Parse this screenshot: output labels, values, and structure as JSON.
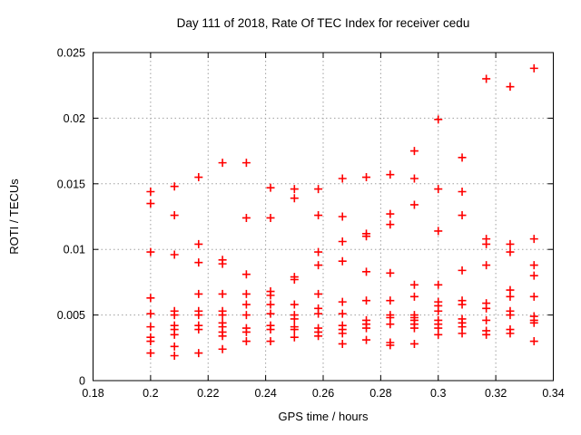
{
  "page": {
    "background": "#ffffff"
  },
  "chart_data": {
    "type": "scatter",
    "title": "Day 111 of 2018, Rate Of TEC Index for receiver cedu",
    "xlabel": "GPS time / hours",
    "ylabel": "ROTI / TECUs",
    "xlim": [
      0.18,
      0.34
    ],
    "ylim": [
      0,
      0.025
    ],
    "xtick_values": [
      0.18,
      0.2,
      0.22,
      0.24,
      0.26,
      0.28,
      0.3,
      0.32,
      0.34
    ],
    "xtick_labels": [
      "0.18",
      "0.2",
      "0.22",
      "0.24",
      "0.26",
      "0.28",
      "0.3",
      "0.32",
      "0.34"
    ],
    "ytick_values": [
      0,
      0.005,
      0.01,
      0.015,
      0.02,
      0.025
    ],
    "ytick_labels": [
      "0",
      "0.005",
      "0.01",
      "0.015",
      "0.02",
      "0.025"
    ],
    "grid": true,
    "legend": false,
    "marker": "plus",
    "marker_color": "#ff0000",
    "grid_color": "#9f9f9f",
    "series": [
      {
        "name": "ROTI",
        "points": [
          [
            0.2,
            0.0144
          ],
          [
            0.2,
            0.0135
          ],
          [
            0.2,
            0.0098
          ],
          [
            0.2,
            0.0063
          ],
          [
            0.2,
            0.0051
          ],
          [
            0.2,
            0.0041
          ],
          [
            0.2,
            0.0033
          ],
          [
            0.2,
            0.003
          ],
          [
            0.2,
            0.0021
          ],
          [
            0.2083,
            0.0148
          ],
          [
            0.2083,
            0.0126
          ],
          [
            0.2083,
            0.0096
          ],
          [
            0.2083,
            0.0053
          ],
          [
            0.2083,
            0.005
          ],
          [
            0.2083,
            0.0042
          ],
          [
            0.2083,
            0.0039
          ],
          [
            0.2083,
            0.0035
          ],
          [
            0.2083,
            0.0026
          ],
          [
            0.2083,
            0.0019
          ],
          [
            0.2167,
            0.0155
          ],
          [
            0.2167,
            0.0104
          ],
          [
            0.2167,
            0.009
          ],
          [
            0.2167,
            0.0066
          ],
          [
            0.2167,
            0.0053
          ],
          [
            0.2167,
            0.005
          ],
          [
            0.2167,
            0.0042
          ],
          [
            0.2167,
            0.0039
          ],
          [
            0.2167,
            0.0021
          ],
          [
            0.225,
            0.0166
          ],
          [
            0.225,
            0.0092
          ],
          [
            0.225,
            0.0089
          ],
          [
            0.225,
            0.0066
          ],
          [
            0.225,
            0.0053
          ],
          [
            0.225,
            0.005
          ],
          [
            0.225,
            0.0044
          ],
          [
            0.225,
            0.0041
          ],
          [
            0.225,
            0.0037
          ],
          [
            0.225,
            0.0034
          ],
          [
            0.225,
            0.0024
          ],
          [
            0.2333,
            0.0166
          ],
          [
            0.2333,
            0.0124
          ],
          [
            0.2333,
            0.0081
          ],
          [
            0.2333,
            0.0066
          ],
          [
            0.2333,
            0.0058
          ],
          [
            0.2333,
            0.005
          ],
          [
            0.2333,
            0.004
          ],
          [
            0.2333,
            0.0037
          ],
          [
            0.2333,
            0.003
          ],
          [
            0.2417,
            0.0147
          ],
          [
            0.2417,
            0.0124
          ],
          [
            0.2417,
            0.0068
          ],
          [
            0.2417,
            0.0065
          ],
          [
            0.2417,
            0.0058
          ],
          [
            0.2417,
            0.0051
          ],
          [
            0.2417,
            0.0042
          ],
          [
            0.2417,
            0.0039
          ],
          [
            0.2417,
            0.003
          ],
          [
            0.25,
            0.0146
          ],
          [
            0.25,
            0.0139
          ],
          [
            0.25,
            0.0079
          ],
          [
            0.25,
            0.0077
          ],
          [
            0.25,
            0.0058
          ],
          [
            0.25,
            0.005
          ],
          [
            0.25,
            0.0047
          ],
          [
            0.25,
            0.0041
          ],
          [
            0.25,
            0.0039
          ],
          [
            0.25,
            0.0033
          ],
          [
            0.2583,
            0.0146
          ],
          [
            0.2583,
            0.0126
          ],
          [
            0.2583,
            0.0098
          ],
          [
            0.2583,
            0.0088
          ],
          [
            0.2583,
            0.0066
          ],
          [
            0.2583,
            0.0055
          ],
          [
            0.2583,
            0.0051
          ],
          [
            0.2583,
            0.004
          ],
          [
            0.2583,
            0.0037
          ],
          [
            0.2583,
            0.0034
          ],
          [
            0.2667,
            0.0154
          ],
          [
            0.2667,
            0.0125
          ],
          [
            0.2667,
            0.0106
          ],
          [
            0.2667,
            0.0091
          ],
          [
            0.2667,
            0.006
          ],
          [
            0.2667,
            0.0051
          ],
          [
            0.2667,
            0.0042
          ],
          [
            0.2667,
            0.0039
          ],
          [
            0.2667,
            0.0036
          ],
          [
            0.2667,
            0.0028
          ],
          [
            0.275,
            0.0155
          ],
          [
            0.275,
            0.0112
          ],
          [
            0.275,
            0.011
          ],
          [
            0.275,
            0.0083
          ],
          [
            0.275,
            0.0061
          ],
          [
            0.275,
            0.0046
          ],
          [
            0.275,
            0.0043
          ],
          [
            0.275,
            0.004
          ],
          [
            0.275,
            0.0031
          ],
          [
            0.2833,
            0.0157
          ],
          [
            0.2833,
            0.0127
          ],
          [
            0.2833,
            0.0119
          ],
          [
            0.2833,
            0.0082
          ],
          [
            0.2833,
            0.0061
          ],
          [
            0.2833,
            0.005
          ],
          [
            0.2833,
            0.0048
          ],
          [
            0.2833,
            0.0043
          ],
          [
            0.2833,
            0.0029
          ],
          [
            0.2833,
            0.0027
          ],
          [
            0.2917,
            0.0175
          ],
          [
            0.2917,
            0.0154
          ],
          [
            0.2917,
            0.0134
          ],
          [
            0.2917,
            0.0073
          ],
          [
            0.2917,
            0.0064
          ],
          [
            0.2917,
            0.005
          ],
          [
            0.2917,
            0.0048
          ],
          [
            0.2917,
            0.0046
          ],
          [
            0.2917,
            0.0043
          ],
          [
            0.2917,
            0.004
          ],
          [
            0.2917,
            0.0028
          ],
          [
            0.3,
            0.0199
          ],
          [
            0.3,
            0.0146
          ],
          [
            0.3,
            0.0114
          ],
          [
            0.3,
            0.0073
          ],
          [
            0.3,
            0.006
          ],
          [
            0.3,
            0.0057
          ],
          [
            0.3,
            0.0053
          ],
          [
            0.3,
            0.0046
          ],
          [
            0.3,
            0.0043
          ],
          [
            0.3,
            0.004
          ],
          [
            0.3,
            0.0035
          ],
          [
            0.3083,
            0.017
          ],
          [
            0.3083,
            0.0144
          ],
          [
            0.3083,
            0.0126
          ],
          [
            0.3083,
            0.0084
          ],
          [
            0.3083,
            0.0061
          ],
          [
            0.3083,
            0.0058
          ],
          [
            0.3083,
            0.0047
          ],
          [
            0.3083,
            0.0044
          ],
          [
            0.3083,
            0.0041
          ],
          [
            0.3083,
            0.0036
          ],
          [
            0.3167,
            0.023
          ],
          [
            0.3167,
            0.0108
          ],
          [
            0.3167,
            0.0104
          ],
          [
            0.3167,
            0.0088
          ],
          [
            0.3167,
            0.0059
          ],
          [
            0.3167,
            0.0055
          ],
          [
            0.3167,
            0.0046
          ],
          [
            0.3167,
            0.0038
          ],
          [
            0.3167,
            0.0035
          ],
          [
            0.325,
            0.0224
          ],
          [
            0.325,
            0.0104
          ],
          [
            0.325,
            0.0098
          ],
          [
            0.325,
            0.0069
          ],
          [
            0.325,
            0.0064
          ],
          [
            0.325,
            0.0053
          ],
          [
            0.325,
            0.005
          ],
          [
            0.325,
            0.0039
          ],
          [
            0.325,
            0.0036
          ],
          [
            0.3333,
            0.0238
          ],
          [
            0.3333,
            0.0108
          ],
          [
            0.3333,
            0.0088
          ],
          [
            0.3333,
            0.008
          ],
          [
            0.3333,
            0.0064
          ],
          [
            0.3333,
            0.0049
          ],
          [
            0.3333,
            0.0046
          ],
          [
            0.3333,
            0.0044
          ],
          [
            0.3333,
            0.003
          ]
        ]
      }
    ]
  }
}
